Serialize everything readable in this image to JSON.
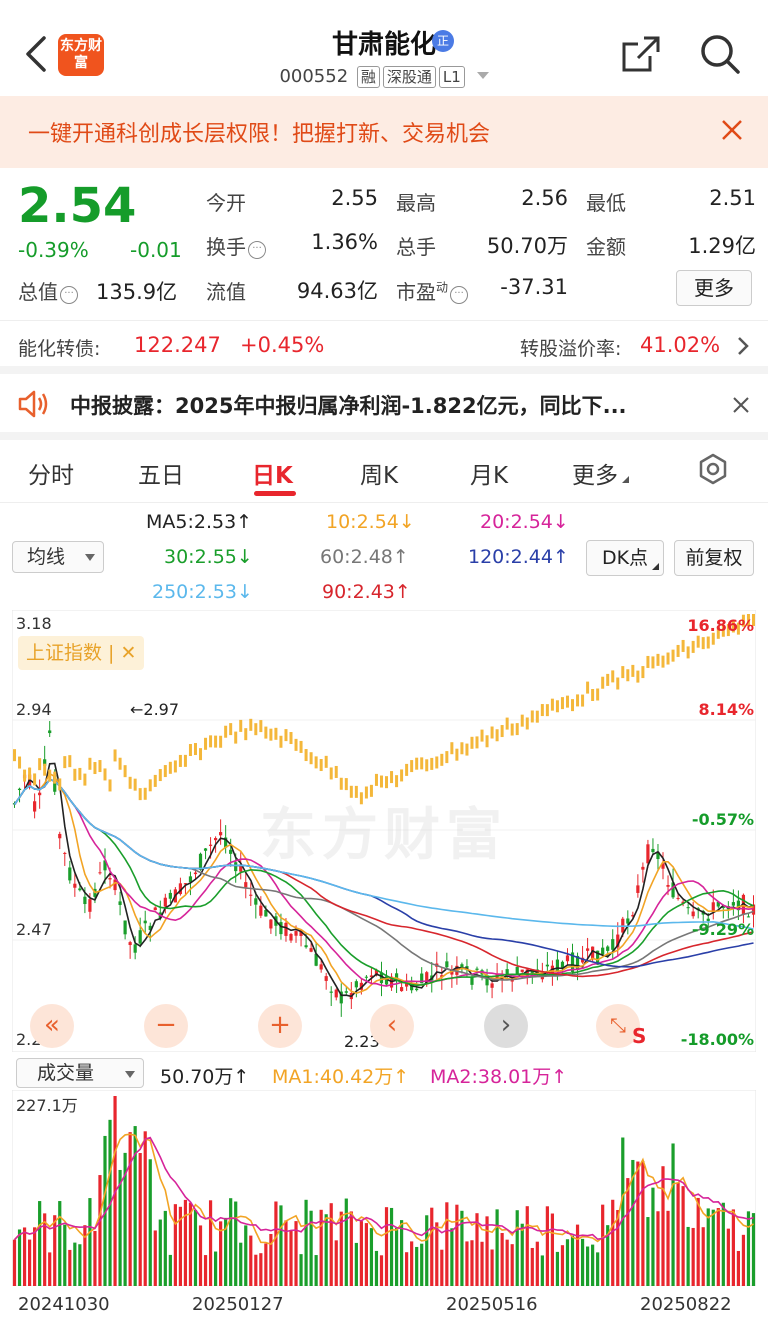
{
  "header": {
    "logo": "东方财富",
    "title": "甘肃能化",
    "title_badge": "正",
    "code": "000552",
    "tags": [
      "融",
      "深股通",
      "L1"
    ]
  },
  "banner": {
    "text": "一键开通科创成长层权限！把握打新、交易机会"
  },
  "quote": {
    "price": "2.54",
    "pct": "-0.39%",
    "chg": "-0.01",
    "zongzhi_label": "总值",
    "zongzhi": "135.9亿",
    "fields": [
      {
        "label": "今开",
        "value": "2.55",
        "color": "normal"
      },
      {
        "label": "最高",
        "value": "2.56",
        "color": "red"
      },
      {
        "label": "最低",
        "value": "2.51",
        "color": "green"
      },
      {
        "label": "换手",
        "value": "1.36%",
        "color": "normal"
      },
      {
        "label": "总手",
        "value": "50.70万",
        "color": "normal"
      },
      {
        "label": "金额",
        "value": "1.29亿",
        "color": "normal"
      },
      {
        "label": "流值",
        "value": "94.63亿",
        "color": "normal"
      },
      {
        "label": "市盈",
        "value": "-37.31",
        "color": "normal"
      }
    ],
    "pe_sup": "动",
    "more_label": "更多"
  },
  "bond": {
    "label": "能化转债:",
    "price": "122.247",
    "chg": "+0.45%",
    "premium_label": "转股溢价率:",
    "premium": "41.02%"
  },
  "notice": {
    "text": "中报披露：2025年中报归属净利润-1.822亿元，同比下..."
  },
  "tabs": [
    "分时",
    "五日",
    "日K",
    "周K",
    "月K",
    "更多"
  ],
  "ma": {
    "junxian_label": "均线",
    "ma5": "MA5:2.53↑",
    "ma10": "10:2.54↓",
    "ma20": "20:2.54↓",
    "ma30": "30:2.55↓",
    "ma60": "60:2.48↑",
    "ma120": "120:2.44↑",
    "ma250": "250:2.53↓",
    "ma90": "90:2.43↑",
    "dk_label": "DK点",
    "fq_label": "前复权",
    "colors": {
      "ma5": "#222222",
      "ma10": "#f2a425",
      "ma20": "#d6249a",
      "ma30": "#1a9e2b",
      "ma60": "#777777",
      "ma120": "#2a3fa8",
      "ma250": "#5bb8ec",
      "ma90": "#d7262d"
    }
  },
  "chart": {
    "y_left": [
      "3.18",
      "2.94",
      "2.47",
      "2.23"
    ],
    "y_right": [
      "16.86%",
      "8.14%",
      "-0.57%",
      "-9.29%",
      "-18.00%"
    ],
    "index_chip": "上证指数 | ✕",
    "high_marker": "2.97",
    "low_marker": "2.23",
    "watermark": "东方财富",
    "s_marker": "S"
  },
  "volume": {
    "label": "成交量",
    "value": "50.70万↑",
    "ma1": "MA1:40.42万↑",
    "ma2": "MA2:38.01万↑",
    "ymax": "227.1万"
  },
  "dates": [
    "20241030",
    "20250127",
    "20250516",
    "20250822"
  ]
}
